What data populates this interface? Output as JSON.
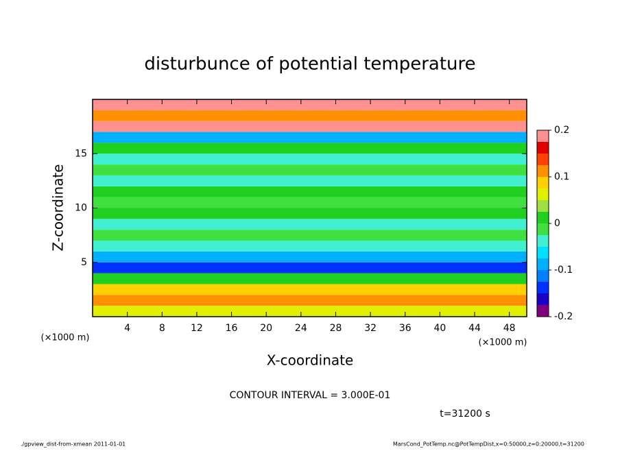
{
  "chart_data": {
    "type": "heatmap",
    "title": "disturbunce of potential temperature",
    "x_label": "X-coordinate",
    "y_label": "Z-coordinate",
    "x_unit": "(×1000 m)",
    "y_unit": "(×1000 m)",
    "xlim": [
      0,
      50
    ],
    "xticks": [
      4,
      8,
      12,
      16,
      20,
      24,
      28,
      32,
      36,
      40,
      44,
      48
    ],
    "ylim": [
      0,
      20
    ],
    "yticks": [
      5,
      10,
      15
    ],
    "ybins": [
      0,
      1,
      2,
      3,
      4,
      5,
      6,
      7,
      8,
      9,
      10,
      11,
      12,
      13,
      14,
      15,
      16,
      17,
      18,
      19,
      20
    ],
    "values": [
      0.05,
      0.1,
      0.08,
      0.0,
      -0.15,
      -0.08,
      -0.03,
      -0.01,
      -0.05,
      0.0,
      -0.02,
      0.0,
      -0.04,
      -0.01,
      -0.03,
      0.0,
      -0.1,
      0.2,
      0.1,
      0.2
    ],
    "clim": [
      -0.2,
      0.2
    ],
    "cticks": [
      0.2,
      0.1,
      0,
      -0.1,
      -0.2
    ],
    "colorscale": [
      "#800080",
      "#1a00c8",
      "#0030ff",
      "#0080ff",
      "#00b0ff",
      "#00e0ff",
      "#40f0d0",
      "#40e040",
      "#20d020",
      "#a0e040",
      "#e0f000",
      "#ffd000",
      "#ff9000",
      "#ff4000",
      "#e00000",
      "#ff9090"
    ],
    "contour_note": "CONTOUR INTERVAL = 3.000E-01",
    "time_label": "t=31200 s",
    "footer_left": "./gpview_dist-from-xmean   2011-01-01",
    "footer_right": "MarsCond_PotTemp.nc@PotTempDist,x=0:50000,z=0:20000,t=31200"
  }
}
